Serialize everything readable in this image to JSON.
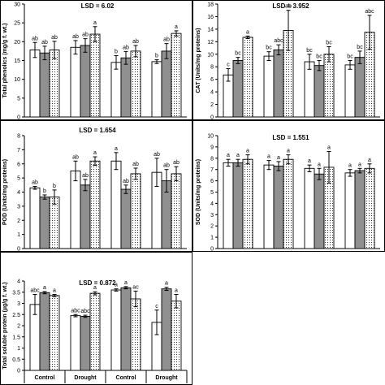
{
  "chart_data": [
    {
      "type": "bar",
      "lsd_label": "LSD = 6.02",
      "ylabel": "Total phenolics (mg/g f. wt.)",
      "ylim": [
        0,
        30
      ],
      "yticks": [
        "0",
        "5",
        "10",
        "15",
        "20",
        "25",
        "30"
      ],
      "groups": [
        {
          "values": [
            17.8,
            17.0,
            17.8
          ],
          "errors": [
            2.0,
            1.8,
            2.3
          ],
          "letters": [
            "ab",
            "ab",
            "ab"
          ]
        },
        {
          "values": [
            18.5,
            19.0,
            22.0
          ],
          "errors": [
            1.8,
            1.8,
            2.0
          ],
          "letters": [
            "ab",
            "ab",
            "a"
          ]
        },
        {
          "values": [
            14.5,
            15.7,
            17.5
          ],
          "errors": [
            1.8,
            1.7,
            1.5
          ],
          "letters": [
            "b",
            "ab",
            "ab"
          ]
        },
        {
          "values": [
            14.7,
            17.5,
            22.2
          ],
          "errors": [
            0.5,
            2.0,
            0.7
          ],
          "letters": [
            "b",
            "ab",
            "a"
          ]
        }
      ]
    },
    {
      "type": "bar",
      "lsd_label": "LSD = 3.952",
      "ylabel": "CAT (Units/mg proteins)",
      "ylim": [
        0,
        18
      ],
      "yticks": [
        "0",
        "2",
        "4",
        "6",
        "8",
        "10",
        "12",
        "14",
        "16",
        "18"
      ],
      "groups": [
        {
          "values": [
            6.7,
            9.0,
            12.7
          ],
          "errors": [
            1.0,
            0.5,
            0.2
          ],
          "letters": [
            "c",
            "bc",
            "a"
          ]
        },
        {
          "values": [
            9.7,
            10.7,
            13.8
          ],
          "errors": [
            0.7,
            0.8,
            3.2
          ],
          "letters": [
            "bc",
            "abc",
            "ab"
          ]
        },
        {
          "values": [
            8.8,
            8.2,
            10.0
          ],
          "errors": [
            1.2,
            0.8,
            1.2
          ],
          "letters": [
            "bc",
            "bc",
            "bc"
          ]
        },
        {
          "values": [
            8.3,
            9.5,
            13.5
          ],
          "errors": [
            0.7,
            1.0,
            2.7
          ],
          "letters": [
            "bc",
            "bc",
            "abc"
          ]
        }
      ]
    },
    {
      "type": "bar",
      "lsd_label": "LSD = 1.654",
      "ylabel": "POD (Units/mg proteins)",
      "ylim": [
        0,
        8
      ],
      "yticks": [
        "0",
        "1",
        "2",
        "3",
        "4",
        "5",
        "6",
        "7",
        "8"
      ],
      "groups": [
        {
          "values": [
            4.3,
            3.65,
            3.65
          ],
          "errors": [
            0.1,
            0.15,
            0.5
          ],
          "letters": [
            "ab",
            "b",
            "b"
          ]
        },
        {
          "values": [
            5.5,
            4.5,
            6.2
          ],
          "errors": [
            0.7,
            0.4,
            0.3
          ],
          "letters": [
            "ab",
            "ab",
            "a"
          ]
        },
        {
          "values": [
            6.2,
            4.2,
            5.3
          ],
          "errors": [
            0.6,
            0.3,
            0.4
          ],
          "letters": [
            "a",
            "ab",
            "ab"
          ]
        },
        {
          "values": [
            5.4,
            4.8,
            5.3
          ],
          "errors": [
            1.0,
            0.8,
            0.5
          ],
          "letters": [
            "ab",
            "ab",
            "ab"
          ]
        }
      ]
    },
    {
      "type": "bar",
      "lsd_label": "LSD = 1.551",
      "ylabel": "SOD (Units/mg proteins)",
      "ylim": [
        0,
        10
      ],
      "yticks": [
        "0",
        "1",
        "2",
        "3",
        "4",
        "5",
        "6",
        "7",
        "8",
        "9",
        "10"
      ],
      "groups": [
        {
          "values": [
            7.6,
            7.6,
            7.9
          ],
          "errors": [
            0.3,
            0.3,
            0.4
          ],
          "letters": [
            "a",
            "a",
            "a"
          ]
        },
        {
          "values": [
            7.4,
            7.3,
            7.9
          ],
          "errors": [
            0.4,
            0.4,
            0.4
          ],
          "letters": [
            "a",
            "a",
            "a"
          ]
        },
        {
          "values": [
            7.1,
            6.6,
            7.2
          ],
          "errors": [
            0.3,
            0.5,
            1.4
          ],
          "letters": [
            "a",
            "a",
            "a"
          ]
        },
        {
          "values": [
            6.7,
            6.9,
            7.1
          ],
          "errors": [
            0.3,
            0.2,
            0.4
          ],
          "letters": [
            "a",
            "a",
            "a"
          ]
        }
      ]
    },
    {
      "type": "bar",
      "lsd_label": "LSD = 0.872",
      "ylabel": "Total soluble protein (µg/g f. wt.)",
      "ylim": [
        0,
        4
      ],
      "yticks": [
        "0",
        "0.5",
        "1",
        "1.5",
        "2",
        "2.5",
        "3",
        "3.5",
        "4"
      ],
      "groups": [
        {
          "values": [
            2.95,
            3.48,
            3.35
          ],
          "errors": [
            0.45,
            0.05,
            0.05
          ],
          "letters": [
            "abc",
            "a",
            "a"
          ]
        },
        {
          "values": [
            2.45,
            2.42,
            3.45
          ],
          "errors": [
            0.05,
            0.05,
            0.07
          ],
          "letters": [
            "abc",
            "abc",
            "a"
          ]
        },
        {
          "values": [
            3.6,
            3.7,
            3.2
          ],
          "errors": [
            0.05,
            0.05,
            0.35
          ],
          "letters": [
            "a",
            "a",
            "ac"
          ]
        },
        {
          "values": [
            2.15,
            3.65,
            3.1
          ],
          "errors": [
            0.55,
            0.07,
            0.3
          ],
          "letters": [
            "c",
            "a",
            "a"
          ]
        }
      ]
    }
  ],
  "x_categories": [
    "Control",
    "Drought",
    "Control",
    "Drought"
  ],
  "bar_fills": [
    "#ffffff",
    "#909090",
    "dotted"
  ]
}
